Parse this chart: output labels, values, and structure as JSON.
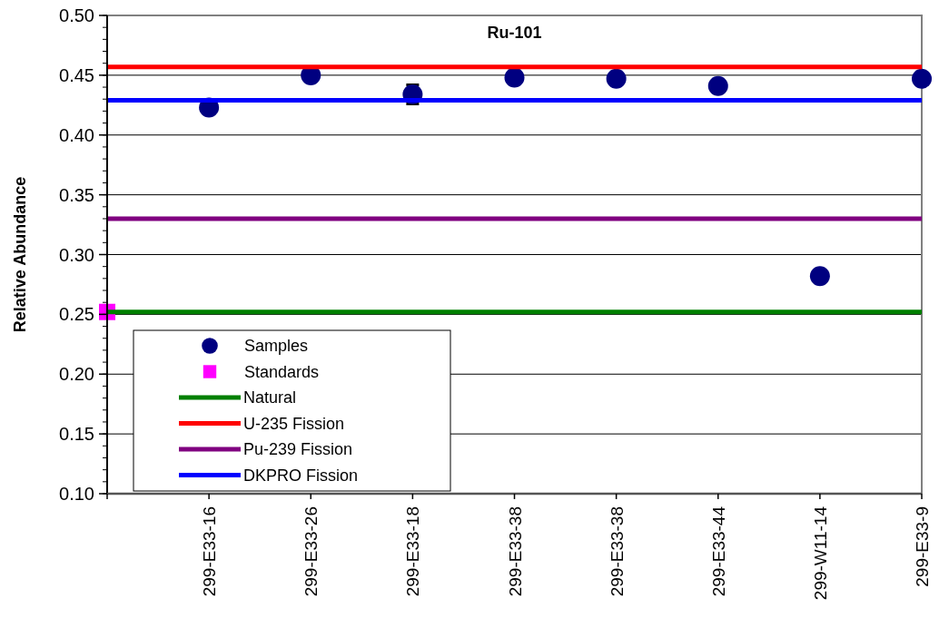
{
  "chart_data": {
    "type": "scatter",
    "title": "Ru-101",
    "ylabel": "Relative Abundance",
    "categories": [
      null,
      "299-E33-16",
      "299-E33-26",
      "299-E33-18",
      "299-E33-38",
      "299-E33-38",
      "299-E33-44",
      "299-W11-14",
      "299-E33-9"
    ],
    "series": [
      {
        "name": "Samples",
        "marker": "circle",
        "color": "#000080",
        "values": [
          null,
          0.423,
          0.45,
          0.434,
          0.448,
          0.447,
          0.441,
          0.282,
          0.447
        ],
        "errors": [
          null,
          null,
          null,
          0.008,
          null,
          null,
          null,
          null,
          null
        ]
      },
      {
        "name": "Standards",
        "marker": "square",
        "color": "#ff00ff",
        "values": [
          0.252,
          null,
          null,
          null,
          null,
          null,
          null,
          null,
          null
        ]
      },
      {
        "name": "Natural",
        "type": "line",
        "color": "#008000",
        "values": [
          0.252,
          0.252,
          0.252,
          0.252,
          0.252,
          0.252,
          0.252,
          0.252,
          0.252
        ]
      },
      {
        "name": "U-235 Fission",
        "type": "line",
        "color": "#ff0000",
        "values": [
          0.457,
          0.457,
          0.457,
          0.457,
          0.457,
          0.457,
          0.457,
          0.457,
          0.457
        ]
      },
      {
        "name": "Pu-239 Fission",
        "type": "line",
        "color": "#800080",
        "values": [
          0.33,
          0.33,
          0.33,
          0.33,
          0.33,
          0.33,
          0.33,
          0.33,
          0.33
        ]
      },
      {
        "name": "DKPRO Fission",
        "type": "line",
        "color": "#0000ff",
        "values": [
          0.429,
          0.429,
          0.429,
          0.429,
          0.429,
          0.429,
          0.429,
          0.429,
          0.429
        ]
      }
    ],
    "ylim": [
      0.1,
      0.5
    ],
    "yticks": [
      {
        "value": 0.1,
        "label": "0.10"
      },
      {
        "value": 0.15,
        "label": "0.15"
      },
      {
        "value": 0.2,
        "label": "0.20"
      },
      {
        "value": 0.25,
        "label": "0.25"
      },
      {
        "value": 0.3,
        "label": "0.30"
      },
      {
        "value": 0.35,
        "label": "0.35"
      },
      {
        "value": 0.4,
        "label": "0.40"
      },
      {
        "value": 0.45,
        "label": "0.45"
      },
      {
        "value": 0.5,
        "label": "0.50"
      }
    ],
    "grid": "y",
    "legend": "bottom left"
  }
}
